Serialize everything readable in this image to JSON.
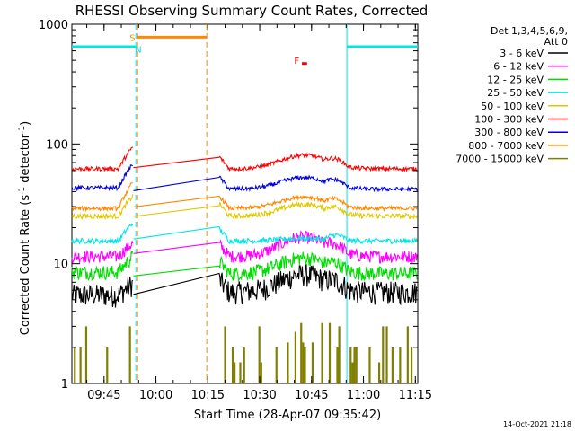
{
  "chart_data": {
    "type": "line",
    "title": "RHESSI Observing Summary Count Rates, Corrected",
    "xlabel": "Start Time (28-Apr-07 09:35:42)",
    "ylabel_main": "Corrected Count Rate (s",
    "ylabel_sup1": "-1",
    "ylabel_mid": " detector",
    "ylabel_sup2": "-1",
    "ylabel_end": ")",
    "yscale": "log",
    "ylim": [
      1,
      1000
    ],
    "xlim_minutes": [
      0,
      100
    ],
    "x_ticks": [
      {
        "label": "09:45",
        "minute": 9.3
      },
      {
        "label": "10:00",
        "minute": 24.3
      },
      {
        "label": "10:15",
        "minute": 39.3
      },
      {
        "label": "10:30",
        "minute": 54.3
      },
      {
        "label": "10:45",
        "minute": 69.3
      },
      {
        "label": "11:00",
        "minute": 84.3
      },
      {
        "label": "11:15",
        "minute": 99.3
      }
    ],
    "y_ticks": [
      {
        "label": "1",
        "value": 1
      },
      {
        "label": "10",
        "value": 10
      },
      {
        "label": "100",
        "value": 100
      },
      {
        "label": "1000",
        "value": 1000
      }
    ],
    "legend_header": [
      "Det 1,3,4,5,6,9,",
      "Att 0"
    ],
    "series": [
      {
        "name": "3 - 6 keV",
        "color": "#000000",
        "pre": 5.5,
        "post": 5.8,
        "bump": 1.4,
        "noise": 0.22
      },
      {
        "name": "6 - 12 keV",
        "color": "#ff00ff",
        "pre": 11.5,
        "post": 11.5,
        "bump": 1.45,
        "noise": 0.12
      },
      {
        "name": "12 - 25 keV",
        "color": "#00dd00",
        "pre": 8.5,
        "post": 8.3,
        "bump": 1.35,
        "noise": 0.14
      },
      {
        "name": "25 - 50 keV",
        "color": "#00e5e5",
        "pre": 15.5,
        "post": 15.5,
        "bump": 1.05,
        "noise": 0.05
      },
      {
        "name": "50 - 100 keV",
        "color": "#e0c800",
        "pre": 25,
        "post": 25,
        "bump": 1.25,
        "noise": 0.05
      },
      {
        "name": "100 - 300 keV",
        "color": "#ff0000",
        "pre": 62,
        "post": 62,
        "bump": 1.3,
        "noise": 0.04
      },
      {
        "name": "300 - 800 keV",
        "color": "#0000dd",
        "pre": 43,
        "post": 42,
        "bump": 1.25,
        "noise": 0.04
      },
      {
        "name": "800 - 7000 keV",
        "color": "#ff8800",
        "pre": 29,
        "post": 29,
        "bump": 1.25,
        "noise": 0.04
      },
      {
        "name": "7000 - 15000 keV",
        "color": "#808000",
        "pre": 1,
        "post": 1,
        "bump": 1,
        "noise": 0
      }
    ],
    "annotations": [
      {
        "text": "S",
        "color": "#ff8800",
        "minute": 17.5,
        "value": 780
      },
      {
        "text": "N",
        "color": "#00e5e5",
        "minute": 19.2,
        "value": 620
      },
      {
        "text": "F",
        "color": "#ff0000",
        "minute": 65.0,
        "value": 500
      }
    ],
    "night_bands": [
      {
        "start_minute": 0,
        "end_minute": 18.5
      },
      {
        "start_minute": 79.5,
        "end_minute": 100
      }
    ],
    "saa_band": {
      "start_minute": 19.0,
      "end_minute": 39.0
    },
    "data_gap": {
      "start_minute": 17.8,
      "end_minute": 42.5
    },
    "flare_marker": {
      "start_minute": 66.5,
      "end_minute": 68.0,
      "value": 470
    }
  },
  "timestamp": "14-Oct-2021 21:18"
}
